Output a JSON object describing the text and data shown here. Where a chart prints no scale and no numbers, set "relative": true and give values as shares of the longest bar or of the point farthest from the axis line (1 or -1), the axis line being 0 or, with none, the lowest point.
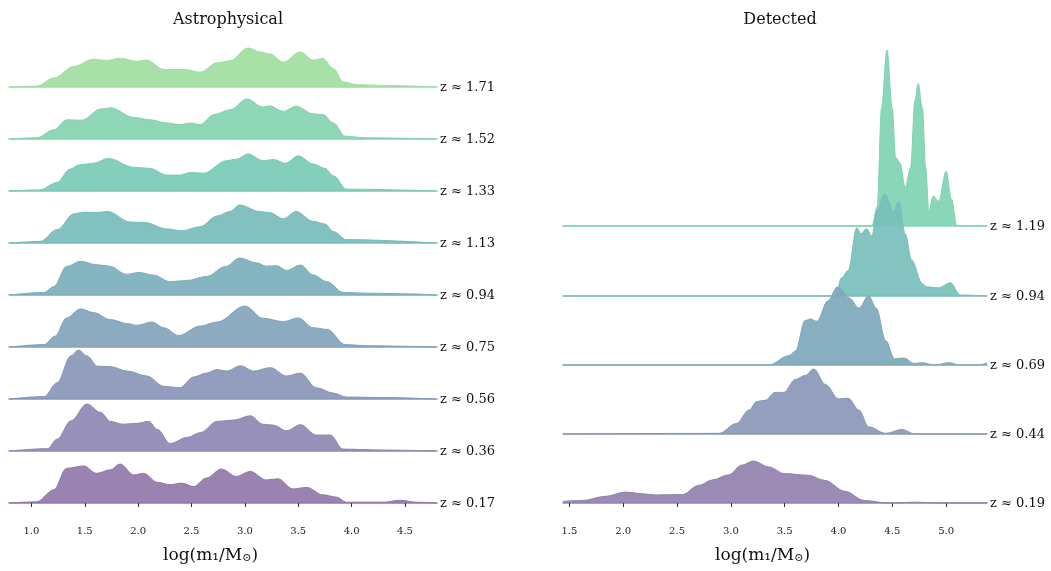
{
  "chart_data": [
    {
      "type": "area",
      "title": "Astrophysical",
      "relative": true,
      "color": "#a0de9f",
      "xlim": [
        0.79,
        4.8
      ],
      "tick_labels": false,
      "annotations": [
        "z ≈ 1.71"
      ],
      "x": [
        0.8,
        1.05,
        1.21,
        1.4,
        1.58,
        1.71,
        1.83,
        1.99,
        2.08,
        2.24,
        2.43,
        2.58,
        2.74,
        2.86,
        3.03,
        3.14,
        3.23,
        3.36,
        3.52,
        3.64,
        3.73,
        3.83,
        3.92,
        4.05,
        4.3,
        4.79
      ],
      "values": [
        0,
        0.02,
        0.23,
        0.53,
        0.71,
        0.68,
        0.74,
        0.66,
        0.69,
        0.45,
        0.45,
        0.38,
        0.62,
        0.67,
        1,
        0.9,
        0.85,
        0.64,
        0.9,
        0.69,
        0.73,
        0.47,
        0.13,
        0.06,
        0.04,
        0
      ]
    },
    {
      "type": "area",
      "relative": true,
      "color": "#86d3b0",
      "xlim": [
        0.79,
        4.8
      ],
      "tick_labels": false,
      "annotations": [
        "z ≈ 1.52"
      ],
      "x": [
        0.8,
        1.05,
        1.21,
        1.33,
        1.47,
        1.65,
        1.74,
        1.96,
        2.11,
        2.27,
        2.39,
        2.49,
        2.58,
        2.71,
        2.86,
        3.02,
        3.17,
        3.23,
        3.36,
        3.48,
        3.64,
        3.73,
        3.83,
        3.94,
        4.14,
        4.79
      ],
      "values": [
        0,
        0.03,
        0.23,
        0.48,
        0.47,
        0.75,
        0.78,
        0.54,
        0.48,
        0.4,
        0.36,
        0.4,
        0.36,
        0.61,
        0.73,
        1,
        0.8,
        0.83,
        0.69,
        0.82,
        0.63,
        0.61,
        0.4,
        0.07,
        0.03,
        0
      ]
    },
    {
      "type": "area",
      "relative": true,
      "color": "#7acab6",
      "xlim": [
        0.79,
        4.8
      ],
      "tick_labels": false,
      "annotations": [
        "z ≈ 1.33"
      ],
      "x": [
        0.8,
        1.08,
        1.24,
        1.36,
        1.45,
        1.58,
        1.72,
        1.96,
        2.11,
        2.27,
        2.39,
        2.49,
        2.61,
        2.83,
        2.92,
        3.03,
        3.17,
        3.27,
        3.38,
        3.5,
        3.64,
        3.75,
        3.83,
        3.95,
        4.79
      ],
      "values": [
        0,
        0.03,
        0.23,
        0.59,
        0.71,
        0.75,
        0.88,
        0.64,
        0.61,
        0.43,
        0.43,
        0.5,
        0.48,
        0.82,
        0.86,
        1,
        0.82,
        0.85,
        0.75,
        0.95,
        0.73,
        0.61,
        0.41,
        0.05,
        0
      ]
    },
    {
      "type": "area",
      "relative": true,
      "color": "#78bcbb",
      "xlim": [
        0.79,
        4.8
      ],
      "tick_labels": false,
      "annotations": [
        "z ≈ 1.13"
      ],
      "x": [
        0.8,
        1.08,
        1.24,
        1.4,
        1.49,
        1.61,
        1.71,
        1.93,
        2.06,
        2.27,
        2.41,
        2.58,
        2.74,
        2.86,
        2.95,
        3.14,
        3.23,
        3.36,
        3.48,
        3.64,
        3.75,
        3.83,
        3.95,
        4.79
      ],
      "values": [
        0,
        0.04,
        0.35,
        0.77,
        0.81,
        0.8,
        0.83,
        0.55,
        0.54,
        0.37,
        0.32,
        0.43,
        0.71,
        0.83,
        1,
        0.83,
        0.8,
        0.64,
        0.83,
        0.57,
        0.5,
        0.3,
        0.09,
        0
      ]
    },
    {
      "type": "area",
      "relative": true,
      "color": "#7aafbc",
      "xlim": [
        0.79,
        4.8
      ],
      "tick_labels": false,
      "annotations": [
        "z ≈ 0.94"
      ],
      "x": [
        0.8,
        1.12,
        1.21,
        1.33,
        1.46,
        1.61,
        1.73,
        1.89,
        2.01,
        2.14,
        2.3,
        2.45,
        2.64,
        2.82,
        2.95,
        3.11,
        3.2,
        3.3,
        3.39,
        3.52,
        3.64,
        3.77,
        3.92,
        4.14,
        4.55,
        4.79
      ],
      "values": [
        0,
        0.07,
        0.23,
        0.77,
        0.91,
        0.82,
        0.78,
        0.56,
        0.61,
        0.54,
        0.36,
        0.39,
        0.5,
        0.77,
        1,
        0.87,
        0.78,
        0.79,
        0.66,
        0.81,
        0.54,
        0.36,
        0.07,
        0.05,
        0.03,
        0
      ]
    },
    {
      "type": "area",
      "relative": true,
      "color": "#82a3bb",
      "xlim": [
        0.79,
        4.8
      ],
      "tick_labels": false,
      "annotations": [
        "z ≈ 0.75"
      ],
      "x": [
        0.8,
        1.12,
        1.22,
        1.33,
        1.46,
        1.58,
        1.74,
        1.9,
        1.99,
        2.13,
        2.24,
        2.38,
        2.58,
        2.74,
        3.0,
        3.17,
        3.36,
        3.5,
        3.64,
        3.77,
        3.94,
        4.14,
        4.79
      ],
      "values": [
        0,
        0.06,
        0.26,
        0.71,
        0.93,
        0.84,
        0.67,
        0.57,
        0.53,
        0.61,
        0.47,
        0.28,
        0.51,
        0.61,
        1,
        0.7,
        0.62,
        0.71,
        0.47,
        0.43,
        0.06,
        0.03,
        0
      ]
    },
    {
      "type": "area",
      "relative": true,
      "color": "#8a96b8",
      "xlim": [
        0.79,
        4.8
      ],
      "tick_labels": false,
      "annotations": [
        "z ≈ 0.56"
      ],
      "x": [
        0.8,
        1.12,
        1.24,
        1.37,
        1.44,
        1.52,
        1.62,
        1.74,
        1.9,
        2.08,
        2.24,
        2.39,
        2.52,
        2.64,
        2.74,
        2.83,
        2.96,
        3.08,
        3.24,
        3.39,
        3.52,
        3.67,
        3.83,
        3.95,
        4.3,
        4.79
      ],
      "values": [
        0,
        0.05,
        0.33,
        0.88,
        1,
        0.88,
        0.67,
        0.66,
        0.57,
        0.47,
        0.26,
        0.23,
        0.45,
        0.53,
        0.6,
        0.57,
        0.68,
        0.57,
        0.64,
        0.47,
        0.53,
        0.23,
        0.12,
        0.04,
        0.03,
        0
      ]
    },
    {
      "type": "area",
      "relative": true,
      "color": "#8e88b4",
      "xlim": [
        0.79,
        4.8
      ],
      "tick_labels": false,
      "annotations": [
        "z ≈ 0.36"
      ],
      "x": [
        0.8,
        1.15,
        1.24,
        1.37,
        1.52,
        1.65,
        1.74,
        1.86,
        1.99,
        2.1,
        2.18,
        2.3,
        2.46,
        2.58,
        2.74,
        2.9,
        3.05,
        3.17,
        3.27,
        3.39,
        3.52,
        3.67,
        3.8,
        3.92,
        4.3,
        4.79
      ],
      "values": [
        0,
        0.05,
        0.25,
        0.64,
        1,
        0.82,
        0.63,
        0.57,
        0.59,
        0.63,
        0.46,
        0.16,
        0.29,
        0.39,
        0.63,
        0.66,
        0.75,
        0.57,
        0.55,
        0.43,
        0.56,
        0.34,
        0.34,
        0.04,
        0.02,
        0
      ]
    },
    {
      "type": "area",
      "relative": true,
      "color": "#9178aa",
      "xlim": [
        0.79,
        4.8
      ],
      "tick_labels": "x",
      "annotations": [
        "z ≈ 0.17"
      ],
      "xlabel": "log(m₁/M$_{⊙}$)",
      "xticks": [
        {
          "value": 1,
          "label": "1.0"
        },
        1.5,
        {
          "value": 2,
          "label": "2.0"
        },
        2.5,
        {
          "value": 3,
          "label": "3.0"
        },
        3.5,
        {
          "value": 4,
          "label": "4.0"
        },
        4.5
      ],
      "x": [
        0.8,
        1.05,
        1.21,
        1.33,
        1.49,
        1.61,
        1.74,
        1.83,
        1.96,
        2.05,
        2.18,
        2.3,
        2.41,
        2.52,
        2.64,
        2.78,
        2.92,
        3.05,
        3.2,
        3.31,
        3.45,
        3.58,
        3.73,
        3.86,
        3.95,
        4.3,
        4.45,
        4.61,
        4.79
      ],
      "values": [
        0,
        0.03,
        0.34,
        0.89,
        0.95,
        0.76,
        0.85,
        1,
        0.72,
        0.76,
        0.53,
        0.47,
        0.51,
        0.42,
        0.64,
        0.87,
        0.68,
        0.81,
        0.59,
        0.62,
        0.36,
        0.4,
        0.21,
        0.15,
        0.02,
        0.02,
        0.07,
        0.02,
        0
      ]
    },
    {
      "type": "area",
      "title": "Detected",
      "relative": true,
      "color": "#80d2b2",
      "xlim": [
        1.44,
        5.38
      ],
      "tick_labels": false,
      "annotations": [
        "z ≈ 1.19"
      ],
      "x": [
        1.44,
        4.31,
        4.36,
        4.4,
        4.45,
        4.5,
        4.53,
        4.57,
        4.62,
        4.67,
        4.71,
        4.74,
        4.78,
        4.81,
        4.84,
        4.88,
        4.93,
        5.0,
        5.05,
        5.1,
        5.38
      ],
      "values": [
        0,
        0,
        0.11,
        0.67,
        1,
        0.67,
        0.39,
        0.36,
        0.22,
        0.33,
        0.71,
        0.81,
        0.67,
        0.33,
        0.08,
        0.17,
        0.14,
        0.31,
        0.15,
        0,
        0
      ]
    },
    {
      "type": "area",
      "relative": true,
      "color": "#78bfbb",
      "xlim": [
        1.44,
        5.38
      ],
      "tick_labels": false,
      "annotations": [
        "z ≈ 0.94"
      ],
      "x": [
        1.44,
        3.97,
        4.03,
        4.09,
        4.17,
        4.21,
        4.26,
        4.31,
        4.36,
        4.43,
        4.51,
        4.56,
        4.62,
        4.68,
        4.78,
        4.82,
        4.93,
        5.04,
        5.13,
        5.38
      ],
      "values": [
        0,
        0,
        0.18,
        0.25,
        0.67,
        0.61,
        0.66,
        0.59,
        0.84,
        1,
        0.83,
        0.92,
        0.61,
        0.35,
        0.12,
        0.09,
        0.08,
        0.13,
        0.01,
        0
      ]
    },
    {
      "type": "area",
      "relative": true,
      "color": "#7ea8bb",
      "xlim": [
        1.44,
        5.38
      ],
      "tick_labels": false,
      "annotations": [
        "z ≈ 0.69"
      ],
      "x": [
        1.44,
        3.35,
        3.54,
        3.6,
        3.69,
        3.74,
        3.8,
        3.9,
        3.99,
        4.1,
        4.19,
        4.28,
        4.35,
        4.44,
        4.52,
        4.61,
        4.7,
        4.78,
        4.89,
        5.03,
        5.12,
        5.31,
        5.38
      ],
      "values": [
        0,
        0,
        0.12,
        0.18,
        0.57,
        0.59,
        0.56,
        0.82,
        1,
        0.86,
        0.73,
        0.89,
        0.73,
        0.31,
        0.08,
        0.09,
        0.02,
        0.03,
        0,
        0.03,
        0,
        0,
        0.03
      ]
    },
    {
      "type": "area",
      "relative": true,
      "color": "#8b97b8",
      "xlim": [
        1.44,
        5.38
      ],
      "tick_labels": false,
      "annotations": [
        "z ≈ 0.44"
      ],
      "x": [
        1.44,
        2.89,
        3.05,
        3.17,
        3.24,
        3.32,
        3.41,
        3.49,
        3.6,
        3.69,
        3.77,
        3.88,
        4.0,
        4.09,
        4.19,
        4.28,
        4.44,
        4.59,
        4.71,
        5.38
      ],
      "values": [
        0,
        0.01,
        0.16,
        0.37,
        0.5,
        0.52,
        0.64,
        0.64,
        0.84,
        0.9,
        1,
        0.76,
        0.54,
        0.55,
        0.37,
        0.11,
        0.01,
        0.07,
        0,
        0
      ]
    },
    {
      "type": "area",
      "relative": true,
      "color": "#9281ae",
      "xlim": [
        1.44,
        5.38
      ],
      "tick_labels": "x",
      "annotations": [
        "z ≈ 0.19"
      ],
      "xlabel": "log(m₁/M$_{⊙}$)",
      "xticks": [
        1.5,
        {
          "value": 2,
          "label": "2.0"
        },
        2.5,
        {
          "value": 3,
          "label": "3.0"
        },
        3.5,
        {
          "value": 4,
          "label": "4.0"
        },
        4.5,
        {
          "value": 5,
          "label": "5.0"
        }
      ],
      "x": [
        1.44,
        1.62,
        1.84,
        2.02,
        2.18,
        2.3,
        2.55,
        2.7,
        2.83,
        2.98,
        3.1,
        3.21,
        3.35,
        3.5,
        3.72,
        3.87,
        4.06,
        4.24,
        4.46,
        4.71,
        4.93,
        5.38
      ],
      "values": [
        0.04,
        0.06,
        0.16,
        0.26,
        0.22,
        0.19,
        0.2,
        0.42,
        0.55,
        0.67,
        0.9,
        1,
        0.86,
        0.7,
        0.66,
        0.54,
        0.28,
        0.06,
        0,
        0.02,
        0,
        0
      ]
    }
  ]
}
